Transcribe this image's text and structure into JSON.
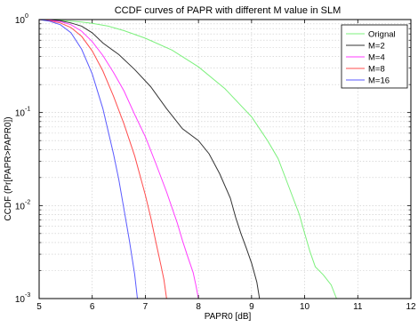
{
  "chart_data": {
    "type": "line",
    "title": "CCDF curves of PAPR with different M value in SLM",
    "xlabel": "PAPR0 [dB]",
    "ylabel": "CCDF (Pr[PAPR>PAPR0])",
    "xlim": [
      5,
      12
    ],
    "ylim": [
      0.001,
      1
    ],
    "yscale": "log",
    "grid": true,
    "legend_position": "top-right",
    "x_ticks": [
      "5",
      "6",
      "7",
      "8",
      "9",
      "10",
      "11",
      "12"
    ],
    "y_ticks": [
      {
        "base": "10",
        "exp": "-3",
        "value": 0.001
      },
      {
        "base": "10",
        "exp": "-2",
        "value": 0.01
      },
      {
        "base": "10",
        "exp": "-1",
        "value": 0.1
      },
      {
        "base": "10",
        "exp": "0",
        "value": 1
      }
    ],
    "series": [
      {
        "name": "Orignal",
        "color": "#7cf07c",
        "x": [
          5.0,
          5.2,
          5.5,
          5.8,
          6.0,
          6.3,
          6.6,
          7.0,
          7.5,
          8.0,
          8.5,
          9.0,
          9.3,
          9.5,
          9.7,
          9.9,
          10.0,
          10.1,
          10.2,
          10.35,
          10.5,
          10.6
        ],
        "y": [
          1.0,
          0.99,
          0.97,
          0.94,
          0.91,
          0.85,
          0.76,
          0.63,
          0.47,
          0.31,
          0.18,
          0.09,
          0.05,
          0.032,
          0.016,
          0.008,
          0.005,
          0.0032,
          0.0022,
          0.0018,
          0.0014,
          0.001
        ]
      },
      {
        "name": "M=2",
        "color": "#333333",
        "x": [
          5.0,
          5.2,
          5.4,
          5.6,
          5.8,
          6.0,
          6.2,
          6.5,
          6.8,
          7.1,
          7.4,
          7.7,
          8.0,
          8.2,
          8.4,
          8.6,
          8.7,
          8.8,
          8.9,
          9.0,
          9.1,
          9.15
        ],
        "y": [
          1.0,
          0.99,
          0.97,
          0.92,
          0.85,
          0.72,
          0.56,
          0.42,
          0.29,
          0.19,
          0.11,
          0.067,
          0.05,
          0.036,
          0.022,
          0.012,
          0.0075,
          0.005,
          0.0035,
          0.0024,
          0.0015,
          0.001
        ]
      },
      {
        "name": "M=4",
        "color": "#ff3cff",
        "x": [
          5.0,
          5.2,
          5.4,
          5.6,
          5.8,
          6.0,
          6.2,
          6.4,
          6.6,
          6.8,
          7.0,
          7.2,
          7.4,
          7.6,
          7.7,
          7.8,
          7.9,
          7.95,
          8.0
        ],
        "y": [
          1.0,
          0.98,
          0.95,
          0.88,
          0.75,
          0.58,
          0.41,
          0.27,
          0.17,
          0.095,
          0.055,
          0.028,
          0.014,
          0.0065,
          0.0042,
          0.0028,
          0.0019,
          0.0014,
          0.001
        ]
      },
      {
        "name": "M=8",
        "color": "#ff4d4d",
        "x": [
          5.0,
          5.2,
          5.4,
          5.6,
          5.8,
          6.0,
          6.2,
          6.4,
          6.6,
          6.8,
          7.0,
          7.1,
          7.2,
          7.3,
          7.35,
          7.4
        ],
        "y": [
          1.0,
          0.97,
          0.92,
          0.82,
          0.66,
          0.46,
          0.28,
          0.15,
          0.075,
          0.034,
          0.013,
          0.0075,
          0.004,
          0.0022,
          0.0016,
          0.001
        ]
      },
      {
        "name": "M=16",
        "color": "#5a5aff",
        "x": [
          5.0,
          5.2,
          5.4,
          5.6,
          5.8,
          6.0,
          6.2,
          6.4,
          6.5,
          6.6,
          6.7,
          6.8,
          6.85
        ],
        "y": [
          1.0,
          0.96,
          0.88,
          0.72,
          0.48,
          0.26,
          0.11,
          0.036,
          0.019,
          0.009,
          0.0042,
          0.0018,
          0.001
        ]
      }
    ]
  }
}
